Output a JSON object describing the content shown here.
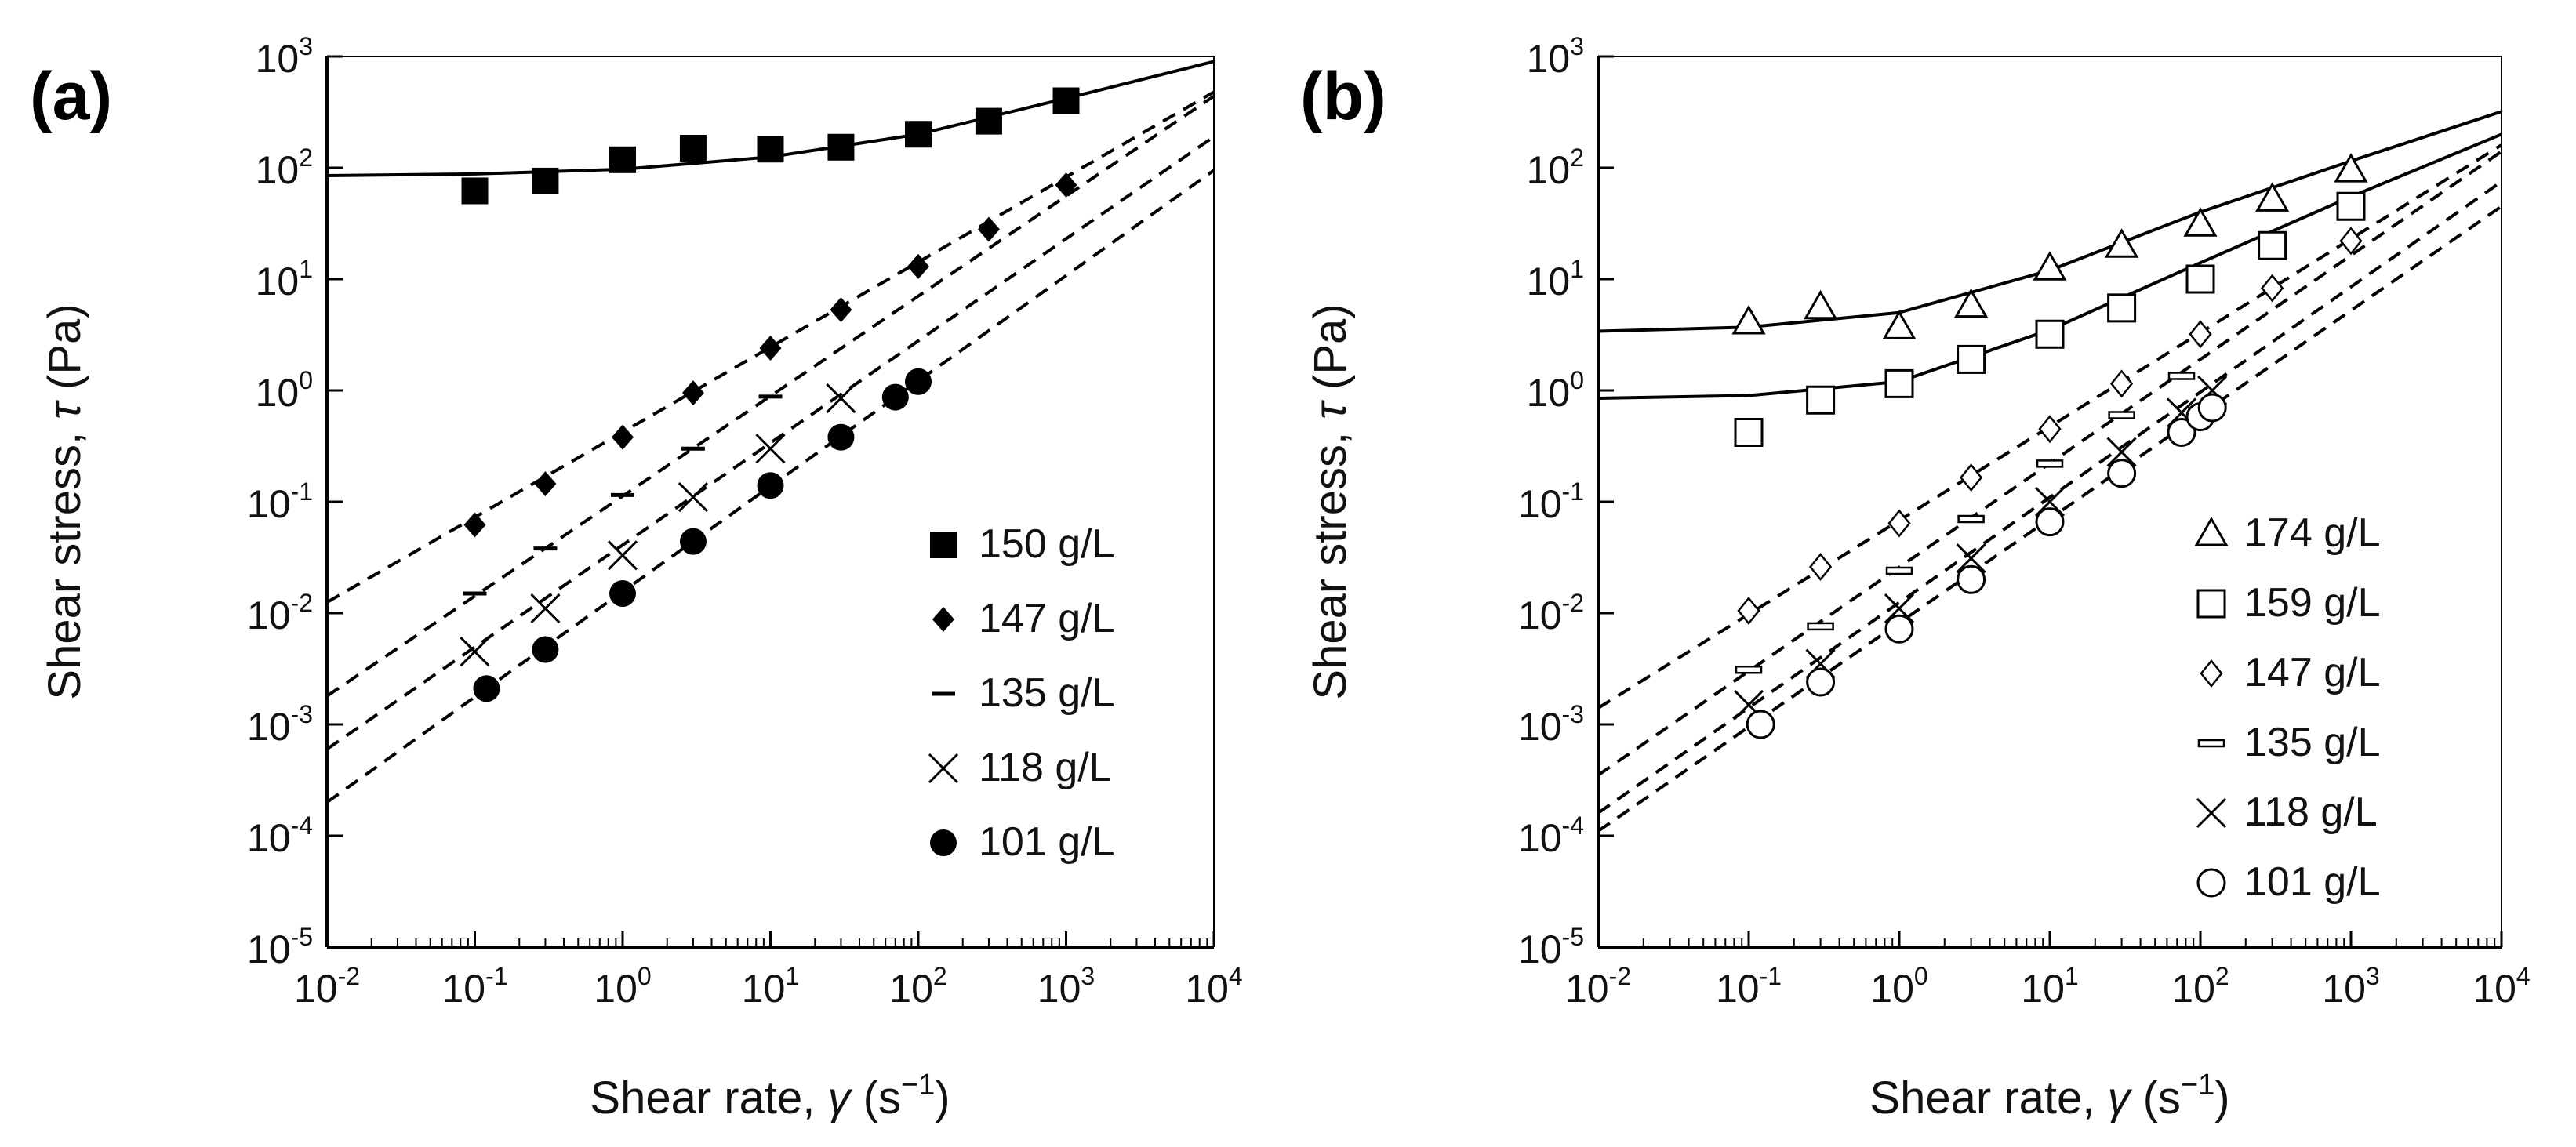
{
  "chart_data": [
    {
      "type": "scatter",
      "panel_label": "(a)",
      "x_scale": "log",
      "y_scale": "log",
      "xlim": [
        0.01,
        10000
      ],
      "ylim": [
        1e-05,
        1000
      ],
      "x_ticks": [
        {
          "base": "10",
          "exp": "-2"
        },
        {
          "base": "10",
          "exp": "-1"
        },
        {
          "base": "10",
          "exp": "0"
        },
        {
          "base": "10",
          "exp": "1"
        },
        {
          "base": "10",
          "exp": "2"
        },
        {
          "base": "10",
          "exp": "3"
        },
        {
          "base": "10",
          "exp": "4"
        }
      ],
      "y_ticks": [
        {
          "base": "10",
          "exp": "-5"
        },
        {
          "base": "10",
          "exp": "-4"
        },
        {
          "base": "10",
          "exp": "-3"
        },
        {
          "base": "10",
          "exp": "-2"
        },
        {
          "base": "10",
          "exp": "-1"
        },
        {
          "base": "10",
          "exp": "0"
        },
        {
          "base": "10",
          "exp": "1"
        },
        {
          "base": "10",
          "exp": "2"
        },
        {
          "base": "10",
          "exp": "3"
        }
      ],
      "xlabel": {
        "prefix": "Shear rate, ",
        "symbol": "γ",
        "suffix": " (s",
        "unit_exp": "−1",
        "close": ")"
      },
      "ylabel": {
        "prefix": "Shear stress, ",
        "symbol": "τ",
        "suffix": " (Pa)"
      },
      "legend_position": "bottom-right",
      "series": [
        {
          "name": "150 g/L",
          "marker": "filled-square",
          "fit": "solid",
          "fit_points": [
            [
              0.01,
              85
            ],
            [
              0.1,
              88
            ],
            [
              1,
              97
            ],
            [
              10,
              125
            ],
            [
              100,
              200
            ],
            [
              1000,
              420
            ],
            [
              10000,
              900
            ]
          ],
          "points": [
            [
              0.1,
              62
            ],
            [
              0.3,
              76
            ],
            [
              1,
              118
            ],
            [
              3,
              150
            ],
            [
              10,
              147
            ],
            [
              30,
              153
            ],
            [
              100,
              200
            ],
            [
              300,
              262
            ],
            [
              1000,
              400
            ]
          ]
        },
        {
          "name": "147 g/L",
          "marker": "filled-diamond",
          "fit": "dashed",
          "fit_points": [
            [
              0.01,
              0.0125
            ],
            [
              10000,
              480
            ]
          ],
          "points": [
            [
              0.1,
              0.062
            ],
            [
              0.3,
              0.145
            ],
            [
              1,
              0.38
            ],
            [
              3,
              0.95
            ],
            [
              10,
              2.4
            ],
            [
              30,
              5.3
            ],
            [
              100,
              13
            ],
            [
              300,
              28
            ],
            [
              1000,
              70
            ]
          ]
        },
        {
          "name": "135 g/L",
          "marker": "dash",
          "fit": "dashed",
          "fit_points": [
            [
              0.01,
              0.0018
            ],
            [
              10000,
              440
            ]
          ],
          "points": [
            [
              0.1,
              0.015
            ],
            [
              0.3,
              0.038
            ],
            [
              1,
              0.115
            ],
            [
              3,
              0.3
            ],
            [
              10,
              0.88
            ]
          ]
        },
        {
          "name": "118 g/L",
          "marker": "cross",
          "fit": "dashed",
          "fit_points": [
            [
              0.01,
              0.0006
            ],
            [
              10000,
              190
            ]
          ],
          "points": [
            [
              0.1,
              0.0045
            ],
            [
              0.3,
              0.011
            ],
            [
              1,
              0.033
            ],
            [
              3,
              0.11
            ],
            [
              10,
              0.3
            ],
            [
              30,
              0.85
            ]
          ]
        },
        {
          "name": "101 g/L",
          "marker": "filled-circle",
          "fit": "dashed",
          "fit_points": [
            [
              0.01,
              0.0002
            ],
            [
              10000,
              95
            ]
          ],
          "points": [
            [
              0.12,
              0.0021
            ],
            [
              0.3,
              0.0047
            ],
            [
              1,
              0.015
            ],
            [
              3,
              0.044
            ],
            [
              10,
              0.14
            ],
            [
              30,
              0.38
            ],
            [
              70,
              0.87
            ],
            [
              100,
              1.2
            ]
          ]
        }
      ]
    },
    {
      "type": "scatter",
      "panel_label": "(b)",
      "x_scale": "log",
      "y_scale": "log",
      "xlim": [
        0.01,
        10000
      ],
      "ylim": [
        1e-05,
        1000
      ],
      "x_ticks": [
        {
          "base": "10",
          "exp": "-2"
        },
        {
          "base": "10",
          "exp": "-1"
        },
        {
          "base": "10",
          "exp": "0"
        },
        {
          "base": "10",
          "exp": "1"
        },
        {
          "base": "10",
          "exp": "2"
        },
        {
          "base": "10",
          "exp": "3"
        },
        {
          "base": "10",
          "exp": "4"
        }
      ],
      "y_ticks": [
        {
          "base": "10",
          "exp": "-5"
        },
        {
          "base": "10",
          "exp": "-4"
        },
        {
          "base": "10",
          "exp": "-3"
        },
        {
          "base": "10",
          "exp": "-2"
        },
        {
          "base": "10",
          "exp": "-1"
        },
        {
          "base": "10",
          "exp": "0"
        },
        {
          "base": "10",
          "exp": "1"
        },
        {
          "base": "10",
          "exp": "2"
        },
        {
          "base": "10",
          "exp": "3"
        }
      ],
      "xlabel": {
        "prefix": "Shear rate, ",
        "symbol": "γ",
        "suffix": " (s",
        "unit_exp": "−1",
        "close": ")"
      },
      "ylabel": {
        "prefix": "Shear stress, ",
        "symbol": "τ",
        "suffix": " (Pa)"
      },
      "legend_position": "bottom-right",
      "series": [
        {
          "name": "174 g/L",
          "marker": "open-triangle",
          "fit": "solid",
          "fit_points": [
            [
              0.01,
              3.4
            ],
            [
              0.1,
              3.7
            ],
            [
              1,
              5
            ],
            [
              10,
              12
            ],
            [
              100,
              40
            ],
            [
              1000,
              115
            ],
            [
              10000,
              320
            ]
          ],
          "points": [
            [
              0.1,
              4.1
            ],
            [
              0.3,
              5.6
            ],
            [
              1,
              3.7
            ],
            [
              3,
              5.8
            ],
            [
              10,
              12.5
            ],
            [
              30,
              20
            ],
            [
              100,
              31
            ],
            [
              300,
              52
            ],
            [
              1000,
              95
            ]
          ]
        },
        {
          "name": "159 g/L",
          "marker": "open-square",
          "fit": "solid",
          "fit_points": [
            [
              0.01,
              0.85
            ],
            [
              0.1,
              0.9
            ],
            [
              1,
              1.2
            ],
            [
              10,
              3.5
            ],
            [
              100,
              14
            ],
            [
              1000,
              55
            ],
            [
              10000,
              200
            ]
          ],
          "points": [
            [
              0.1,
              0.42
            ],
            [
              0.3,
              0.82
            ],
            [
              1,
              1.15
            ],
            [
              3,
              1.9
            ],
            [
              10,
              3.2
            ],
            [
              30,
              5.5
            ],
            [
              100,
              10
            ],
            [
              300,
              20
            ],
            [
              1000,
              45
            ]
          ]
        },
        {
          "name": "147 g/L",
          "marker": "open-diamond",
          "fit": "dashed",
          "fit_points": [
            [
              0.01,
              0.0014
            ],
            [
              10000,
              160
            ]
          ],
          "points": [
            [
              0.1,
              0.0105
            ],
            [
              0.3,
              0.026
            ],
            [
              1,
              0.064
            ],
            [
              3,
              0.165
            ],
            [
              10,
              0.45
            ],
            [
              30,
              1.15
            ],
            [
              100,
              3.2
            ],
            [
              300,
              8.3
            ],
            [
              1000,
              22
            ]
          ]
        },
        {
          "name": "135 g/L",
          "marker": "open-dash",
          "fit": "dashed",
          "fit_points": [
            [
              0.01,
              0.00035
            ],
            [
              10000,
              140
            ]
          ],
          "points": [
            [
              0.1,
              0.0031
            ],
            [
              0.3,
              0.0076
            ],
            [
              1,
              0.024
            ],
            [
              3,
              0.07
            ],
            [
              10,
              0.22
            ],
            [
              30,
              0.6
            ],
            [
              75,
              1.35
            ]
          ]
        },
        {
          "name": "118 g/L",
          "marker": "cross",
          "fit": "dashed",
          "fit_points": [
            [
              0.01,
              0.00016
            ],
            [
              10000,
              75
            ]
          ],
          "points": [
            [
              0.1,
              0.0015
            ],
            [
              0.3,
              0.0035
            ],
            [
              1,
              0.011
            ],
            [
              3,
              0.031
            ],
            [
              10,
              0.1
            ],
            [
              30,
              0.28
            ],
            [
              75,
              0.63
            ],
            [
              120,
              1.0
            ]
          ]
        },
        {
          "name": "101 g/L",
          "marker": "open-circle",
          "fit": "dashed",
          "fit_points": [
            [
              0.01,
              0.00011
            ],
            [
              10000,
              45
            ]
          ],
          "points": [
            [
              0.12,
              0.001
            ],
            [
              0.3,
              0.0024
            ],
            [
              1,
              0.0072
            ],
            [
              3,
              0.02
            ],
            [
              10,
              0.066
            ],
            [
              30,
              0.18
            ],
            [
              75,
              0.42
            ],
            [
              100,
              0.58
            ],
            [
              120,
              0.7
            ]
          ]
        }
      ]
    }
  ]
}
